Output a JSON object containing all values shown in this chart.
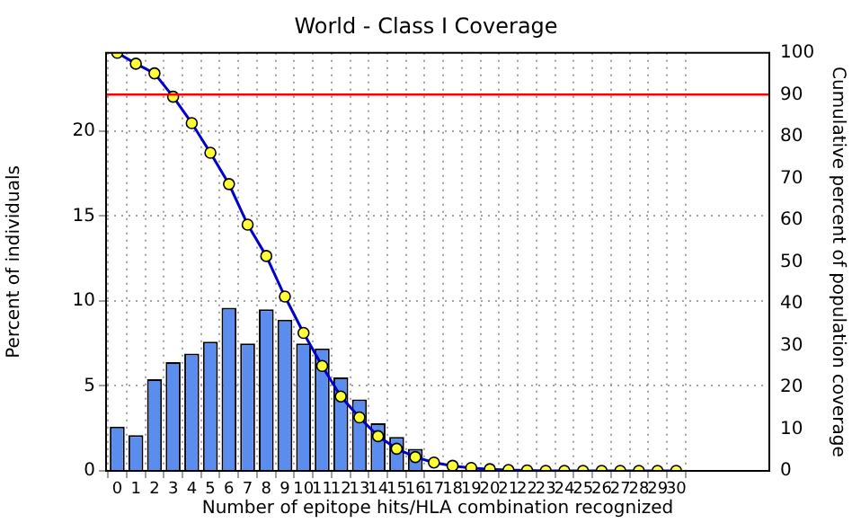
{
  "chart_data": {
    "type": "bar",
    "title": "World - Class I Coverage",
    "xlabel": "Number of epitope hits/HLA combination recognized",
    "ylabel": "Percent of individuals",
    "y2label": "Cumulative percent of population coverage",
    "x": [
      0,
      1,
      2,
      3,
      4,
      5,
      6,
      7,
      8,
      9,
      10,
      11,
      12,
      13,
      14,
      15,
      16,
      17,
      18,
      19,
      20,
      21,
      22,
      23,
      24,
      25,
      26,
      27,
      28,
      29,
      30
    ],
    "series": [
      {
        "color": "#5b8def",
        "values": [
          2.6,
          2.1,
          5.4,
          6.4,
          6.9,
          7.6,
          9.6,
          7.5,
          9.5,
          8.9,
          7.5,
          7.2,
          5.5,
          4.2,
          2.8,
          2,
          1.3,
          null,
          null,
          null,
          null,
          null,
          0,
          0,
          0,
          0,
          0,
          0,
          0,
          0,
          0
        ]
      },
      {
        "type": "line",
        "axis": "y2",
        "color": "#0000cc",
        "marker": "circle",
        "values": [
          100,
          97.4,
          95.1,
          89.5,
          83.2,
          76.1,
          68.6,
          58.9,
          51.4,
          41.7,
          33,
          25.1,
          17.8,
          12.8,
          8.3,
          5.3,
          3.3,
          2,
          1.2,
          0.7,
          0.4,
          0.2,
          0.1,
          0,
          0,
          0,
          0,
          0,
          0,
          0,
          0
        ]
      }
    ],
    "xlim": [
      -0.6,
      35
    ],
    "xticks": [
      0,
      1,
      2,
      3,
      4,
      5,
      6,
      7,
      8,
      9,
      10,
      11,
      12,
      13,
      14,
      15,
      16,
      17,
      18,
      19,
      20,
      21,
      22,
      23,
      24,
      25,
      26,
      27,
      28,
      29,
      30
    ],
    "ylim": [
      0,
      24.6
    ],
    "yticks": [
      0,
      5,
      10,
      15,
      20
    ],
    "y2lim": [
      0,
      100
    ],
    "y2ticks": [
      0,
      10,
      20,
      30,
      40,
      50,
      60,
      70,
      80,
      90,
      100
    ],
    "ref_lines": [
      {
        "axis": "y2",
        "value": 90,
        "color": "#ff0000"
      }
    ],
    "grid": true,
    "legend": false
  }
}
